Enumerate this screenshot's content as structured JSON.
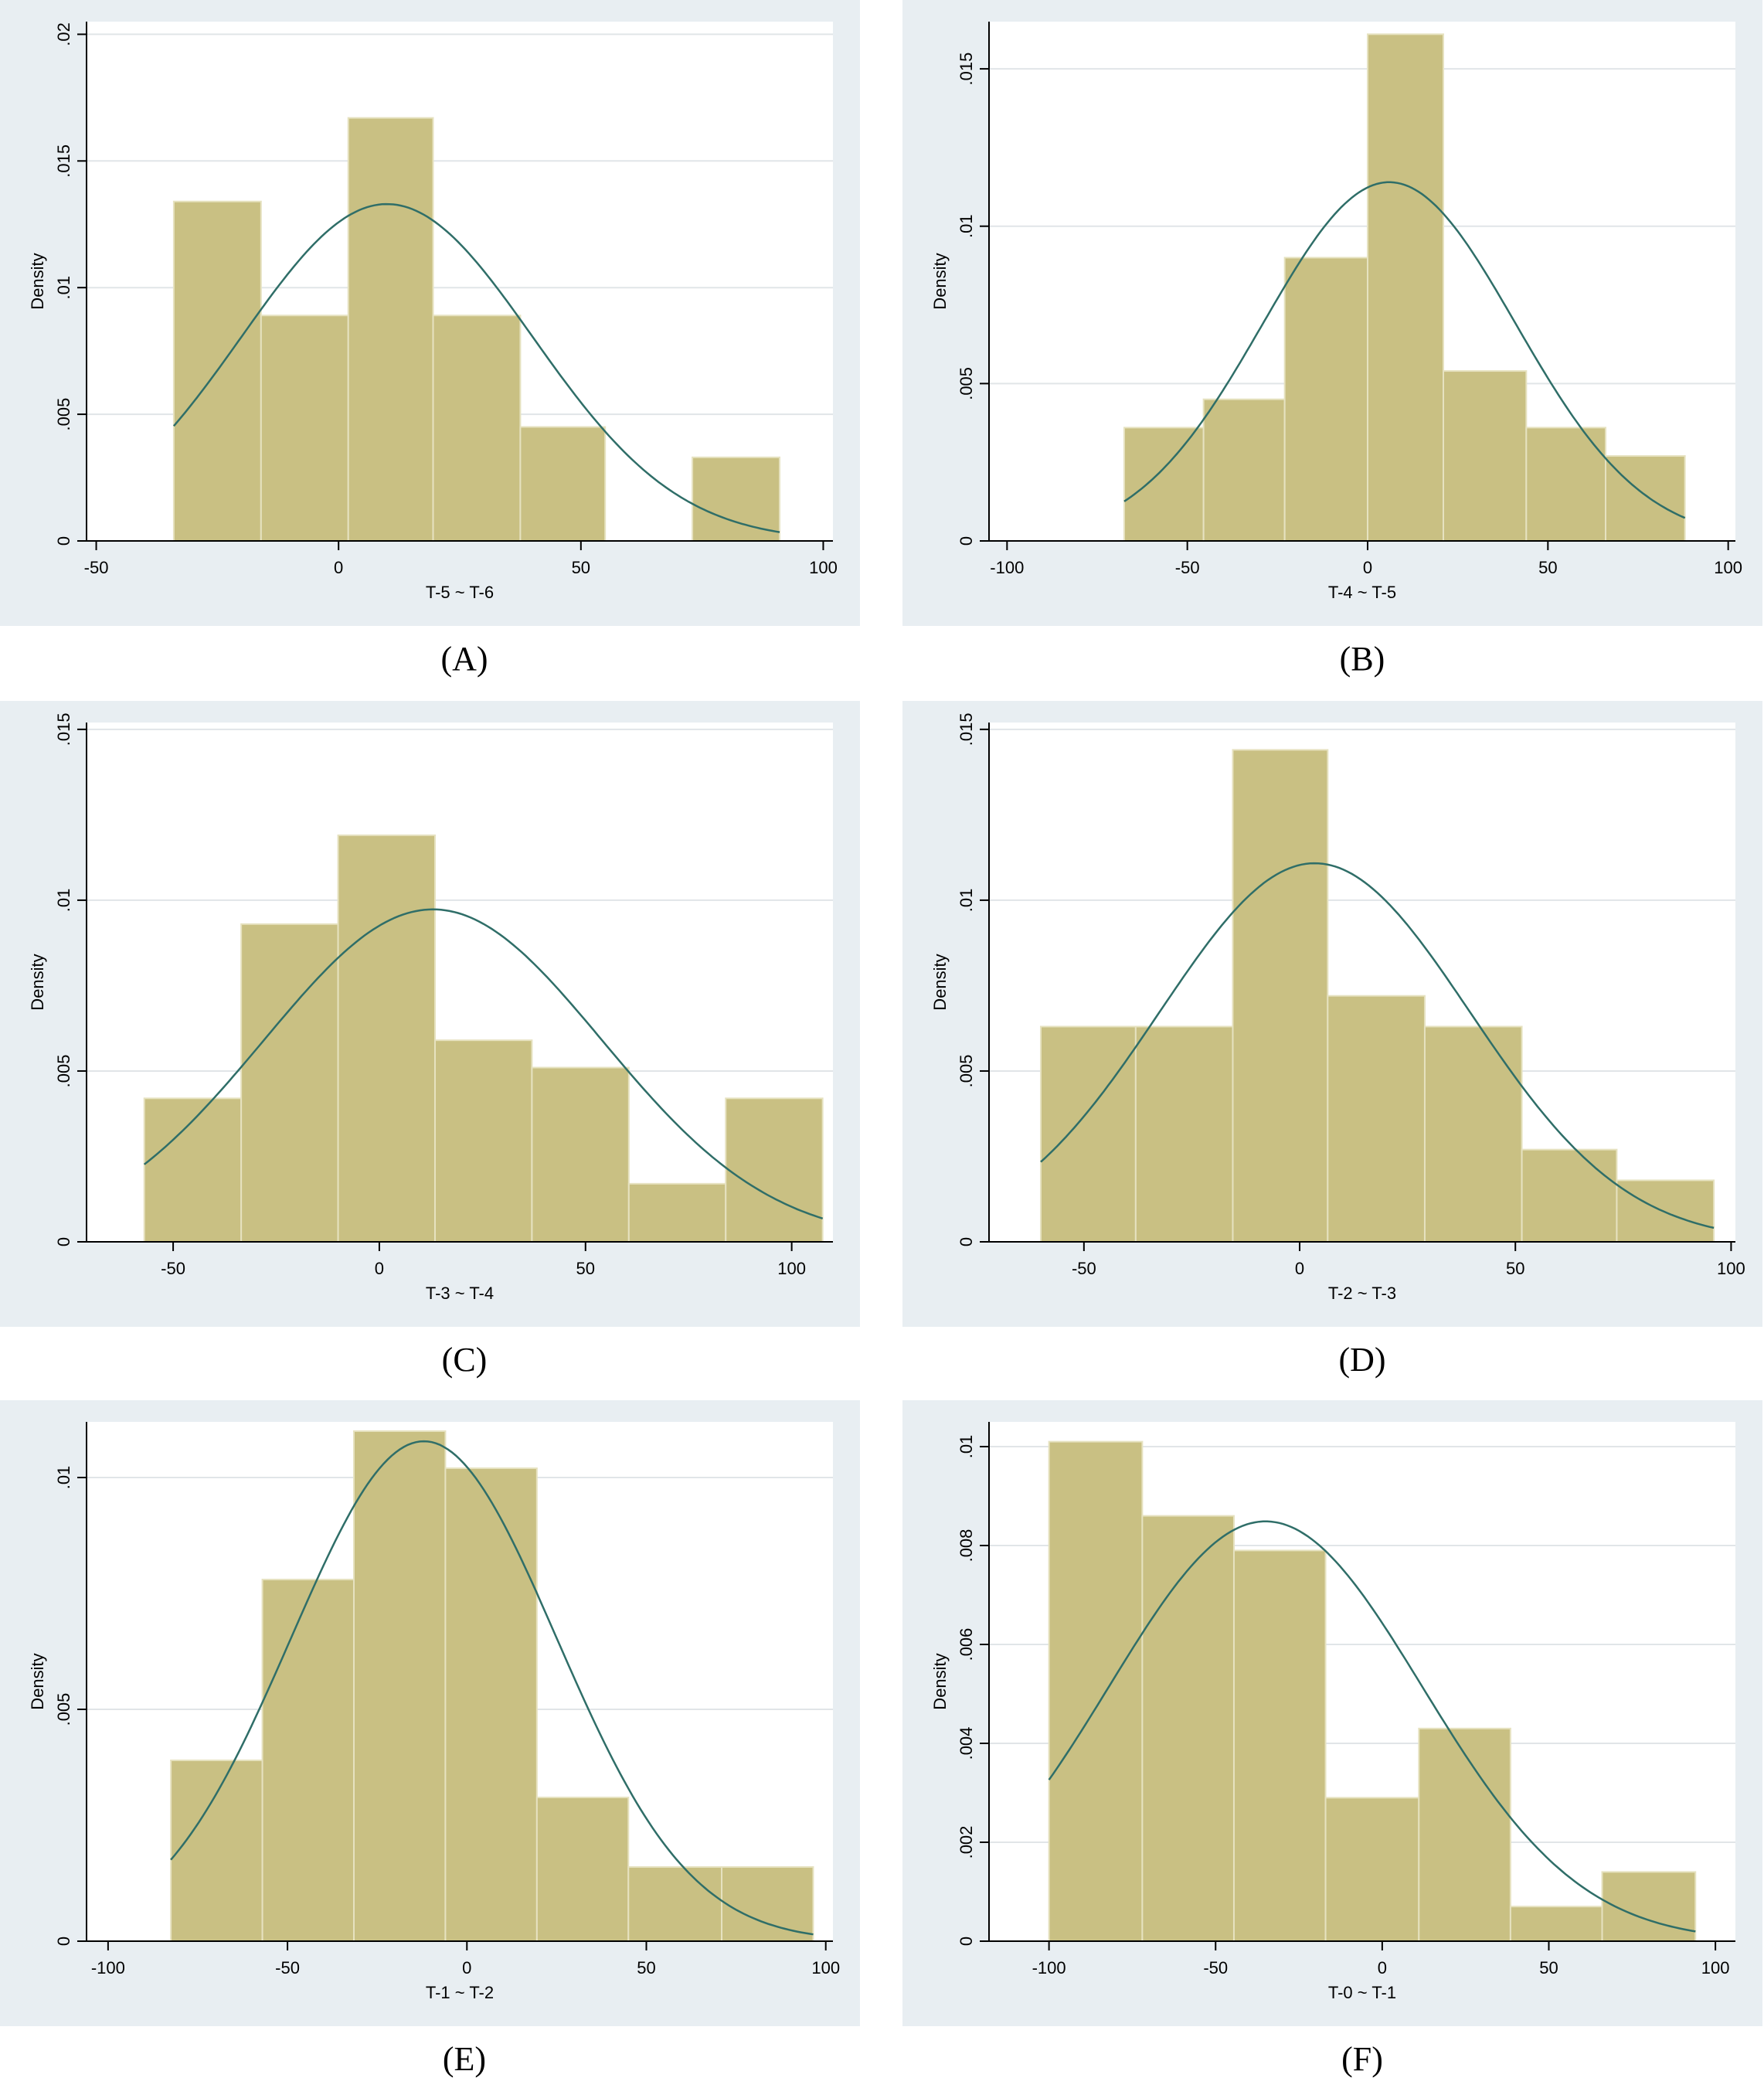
{
  "colors": {
    "panel_bg": "#e8eef2",
    "bar_fill": "#c9c083",
    "bar_edge": "#e6e2c0",
    "curve": "#2f6e68",
    "grid": "#e1e5e8",
    "axis": "#000000"
  },
  "chart_data": [
    {
      "type": "bar",
      "panel_label": "(A)",
      "xlabel": "T-5 ~ T-6",
      "ylabel": "Density",
      "xlim": [
        -52,
        102
      ],
      "ylim": [
        0,
        0.0205
      ],
      "xticks": [
        -50,
        0,
        50,
        100
      ],
      "xtick_labels": [
        "-50",
        "0",
        "50",
        "100"
      ],
      "yticks": [
        0,
        0.005,
        0.01,
        0.015,
        0.02
      ],
      "ytick_labels": [
        "0",
        ".005",
        ".01",
        ".015",
        ".02"
      ],
      "bins": [
        {
          "x0": -34,
          "x1": -16,
          "y": 0.0134
        },
        {
          "x0": -16,
          "x1": 2,
          "y": 0.0089
        },
        {
          "x0": 2,
          "x1": 19.5,
          "y": 0.0167
        },
        {
          "x0": 19.5,
          "x1": 37.5,
          "y": 0.0089
        },
        {
          "x0": 37.5,
          "x1": 55,
          "y": 0.0045
        },
        {
          "x0": 73,
          "x1": 91,
          "y": 0.0033
        }
      ],
      "normal_curve": {
        "mean": 10,
        "sd": 30,
        "x_range": [
          -34,
          91
        ]
      }
    },
    {
      "type": "bar",
      "panel_label": "(B)",
      "xlabel": "T-4 ~ T-5",
      "ylabel": "Density",
      "xlim": [
        -105,
        102
      ],
      "ylim": [
        0,
        0.0165
      ],
      "xticks": [
        -100,
        -50,
        0,
        50,
        100
      ],
      "xtick_labels": [
        "-100",
        "-50",
        "0",
        "50",
        "100"
      ],
      "yticks": [
        0,
        0.005,
        0.01,
        0.015
      ],
      "ytick_labels": [
        "0",
        ".005",
        ".01",
        ".015"
      ],
      "bins": [
        {
          "x0": -67.5,
          "x1": -45.5,
          "y": 0.0036
        },
        {
          "x0": -45.5,
          "x1": -23,
          "y": 0.0045
        },
        {
          "x0": -23,
          "x1": 0,
          "y": 0.009
        },
        {
          "x0": 0,
          "x1": 21,
          "y": 0.0161
        },
        {
          "x0": 21,
          "x1": 44,
          "y": 0.0054
        },
        {
          "x0": 44,
          "x1": 66,
          "y": 0.0036
        },
        {
          "x0": 66,
          "x1": 88,
          "y": 0.0027
        }
      ],
      "normal_curve": {
        "mean": 6,
        "sd": 35,
        "x_range": [
          -67.5,
          88
        ]
      }
    },
    {
      "type": "bar",
      "panel_label": "(C)",
      "xlabel": "T-3 ~ T-4",
      "ylabel": "Density",
      "xlim": [
        -71,
        110
      ],
      "ylim": [
        0,
        0.0152
      ],
      "xticks": [
        -50,
        0,
        50,
        100
      ],
      "xtick_labels": [
        "-50",
        "0",
        "50",
        "100"
      ],
      "yticks": [
        0,
        0.005,
        0.01,
        0.015
      ],
      "ytick_labels": [
        "0",
        ".005",
        ".01",
        ".015"
      ],
      "bins": [
        {
          "x0": -57,
          "x1": -33.5,
          "y": 0.0042
        },
        {
          "x0": -33.5,
          "x1": -10,
          "y": 0.0093
        },
        {
          "x0": -10,
          "x1": 13.5,
          "y": 0.0119
        },
        {
          "x0": 13.5,
          "x1": 37,
          "y": 0.0059
        },
        {
          "x0": 37,
          "x1": 60.5,
          "y": 0.0051
        },
        {
          "x0": 60.5,
          "x1": 84,
          "y": 0.0017
        },
        {
          "x0": 84,
          "x1": 107.5,
          "y": 0.0042
        }
      ],
      "normal_curve": {
        "mean": 13,
        "sd": 41,
        "x_range": [
          -57,
          107.5
        ]
      }
    },
    {
      "type": "bar",
      "panel_label": "(D)",
      "xlabel": "T-2 ~ T-3",
      "ylabel": "Density",
      "xlim": [
        -72,
        101
      ],
      "ylim": [
        0,
        0.0152
      ],
      "xticks": [
        -50,
        0,
        50,
        100
      ],
      "xtick_labels": [
        "-50",
        "0",
        "50",
        "100"
      ],
      "yticks": [
        0,
        0.005,
        0.01,
        0.015
      ],
      "ytick_labels": [
        "0",
        ".005",
        ".01",
        ".015"
      ],
      "bins": [
        {
          "x0": -60,
          "x1": -38,
          "y": 0.0063
        },
        {
          "x0": -38,
          "x1": -15.5,
          "y": 0.0063
        },
        {
          "x0": -15.5,
          "x1": 6.5,
          "y": 0.0144
        },
        {
          "x0": 6.5,
          "x1": 29,
          "y": 0.0072
        },
        {
          "x0": 29,
          "x1": 51.5,
          "y": 0.0063
        },
        {
          "x0": 51.5,
          "x1": 73.5,
          "y": 0.0027
        },
        {
          "x0": 73.5,
          "x1": 96,
          "y": 0.0018
        }
      ],
      "normal_curve": {
        "mean": 3.5,
        "sd": 36,
        "x_range": [
          -60,
          96
        ]
      }
    },
    {
      "type": "bar",
      "panel_label": "(E)",
      "xlabel": "T-1 ~ T-2",
      "ylabel": "Density",
      "xlim": [
        -106,
        102
      ],
      "ylim": [
        0,
        0.0112
      ],
      "xticks": [
        -100,
        -50,
        0,
        50,
        100
      ],
      "xtick_labels": [
        "-100",
        "-50",
        "0",
        "50",
        "100"
      ],
      "yticks": [
        0,
        0.005,
        0.01
      ],
      "ytick_labels": [
        "0",
        ".005",
        ".01"
      ],
      "bins": [
        {
          "x0": -82.5,
          "x1": -57,
          "y": 0.0039
        },
        {
          "x0": -57,
          "x1": -31.5,
          "y": 0.0078
        },
        {
          "x0": -31.5,
          "x1": -6,
          "y": 0.011
        },
        {
          "x0": -6,
          "x1": 19.5,
          "y": 0.0102
        },
        {
          "x0": 19.5,
          "x1": 45,
          "y": 0.0031
        },
        {
          "x0": 45,
          "x1": 71,
          "y": 0.0016
        },
        {
          "x0": 71,
          "x1": 96.5,
          "y": 0.0016
        }
      ],
      "normal_curve": {
        "mean": -12,
        "sd": 37,
        "x_range": [
          -82.5,
          96.5
        ]
      }
    },
    {
      "type": "bar",
      "panel_label": "(F)",
      "xlabel": "T-0 ~ T-1",
      "ylabel": "Density",
      "xlim": [
        -118,
        106
      ],
      "ylim": [
        0,
        0.0105
      ],
      "xticks": [
        -100,
        -50,
        0,
        50,
        100
      ],
      "xtick_labels": [
        "-100",
        "-50",
        "0",
        "50",
        "100"
      ],
      "yticks": [
        0,
        0.002,
        0.004,
        0.006,
        0.008,
        0.01
      ],
      "ytick_labels": [
        "0",
        ".002",
        ".004",
        ".006",
        ".008",
        ".01"
      ],
      "bins": [
        {
          "x0": -100,
          "x1": -72,
          "y": 0.0101
        },
        {
          "x0": -72,
          "x1": -44.5,
          "y": 0.0086
        },
        {
          "x0": -44.5,
          "x1": -17,
          "y": 0.0079
        },
        {
          "x0": -17,
          "x1": 11,
          "y": 0.0029
        },
        {
          "x0": 11,
          "x1": 38.5,
          "y": 0.0043
        },
        {
          "x0": 38.5,
          "x1": 66,
          "y": 0.0007
        },
        {
          "x0": 66,
          "x1": 94,
          "y": 0.0014
        }
      ],
      "normal_curve": {
        "mean": -35,
        "sd": 47,
        "x_range": [
          -100,
          94
        ]
      }
    }
  ]
}
